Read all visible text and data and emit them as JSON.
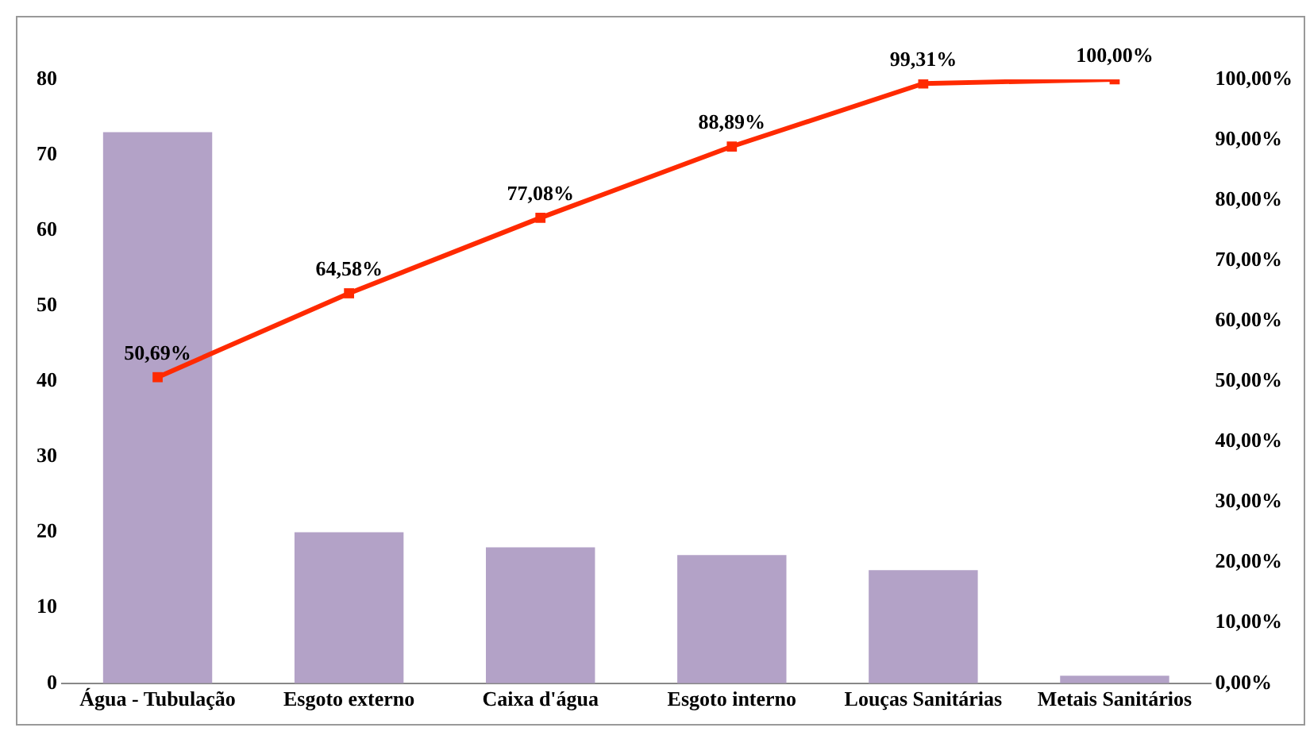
{
  "chart_data": {
    "type": "bar",
    "categories": [
      "Água - Tubulação",
      "Esgoto externo",
      "Caixa d'água",
      "Esgoto interno",
      "Louças Sanitárias",
      "Metais Sanitários"
    ],
    "series": [
      {
        "color": "#b3a2c7",
        "values": [
          73,
          20,
          18,
          17,
          15,
          1
        ]
      },
      {
        "type": "line",
        "axis": "y2",
        "color": "#ff2a00",
        "values": [
          50.69,
          64.58,
          77.08,
          88.89,
          99.31,
          100
        ],
        "value_labels": [
          "50,69%",
          "64,58%",
          "77,08%",
          "88,89%",
          "99,31%",
          "100,00%"
        ]
      }
    ],
    "marker": "square",
    "ylim": [
      0,
      80
    ],
    "yticks": [
      0,
      10,
      20,
      30,
      40,
      50,
      60,
      70,
      80
    ],
    "y2lim": [
      0,
      100
    ],
    "y2ticks": [
      {
        "value": 0,
        "label": "0,00%"
      },
      {
        "value": 10,
        "label": "10,00%"
      },
      {
        "value": 20,
        "label": "20,00%"
      },
      {
        "value": 30,
        "label": "30,00%"
      },
      {
        "value": 40,
        "label": "40,00%"
      },
      {
        "value": 50,
        "label": "50,00%"
      },
      {
        "value": 60,
        "label": "60,00%"
      },
      {
        "value": 70,
        "label": "70,00%"
      },
      {
        "value": 80,
        "label": "80,00%"
      },
      {
        "value": 90,
        "label": "90,00%"
      },
      {
        "value": 100,
        "label": "100,00%"
      }
    ],
    "grid": false,
    "legend": false
  }
}
